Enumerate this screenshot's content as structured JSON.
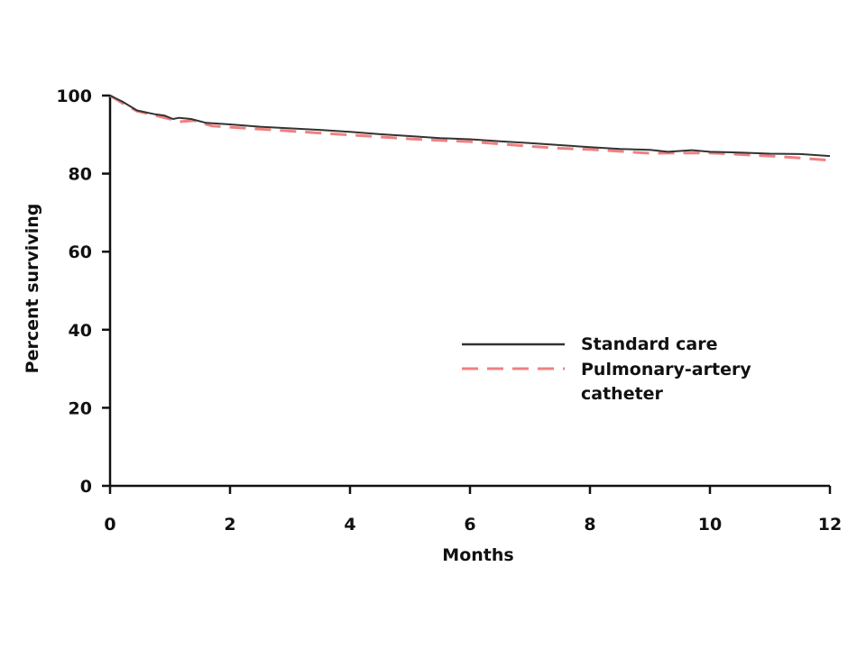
{
  "chart_data": {
    "type": "line",
    "title": "",
    "xlabel": "Months",
    "ylabel": "Percent surviving",
    "xlim": [
      0,
      12
    ],
    "ylim": [
      0,
      100
    ],
    "x_ticks": [
      0,
      2,
      4,
      6,
      8,
      10,
      12
    ],
    "y_ticks": [
      0,
      20,
      40,
      60,
      80,
      100
    ],
    "grid": false,
    "legend_position": "right",
    "series": [
      {
        "name": "Standard care",
        "color": "#333333",
        "style": "solid",
        "x": [
          0,
          0.2,
          0.45,
          0.75,
          0.9,
          1.05,
          1.15,
          1.35,
          1.6,
          2,
          2.5,
          3,
          3.5,
          4,
          4.5,
          5,
          5.5,
          6,
          6.5,
          7,
          7.5,
          8,
          8.5,
          9,
          9.3,
          9.7,
          10,
          10.5,
          11,
          11.5,
          12
        ],
        "y": [
          100,
          98.5,
          96.2,
          95.2,
          94.9,
          94.0,
          94.3,
          94.0,
          93.0,
          92.6,
          92.0,
          91.6,
          91.2,
          90.7,
          90.1,
          89.6,
          89.1,
          88.8,
          88.3,
          87.8,
          87.3,
          86.8,
          86.3,
          86.1,
          85.6,
          86.0,
          85.6,
          85.4,
          85.1,
          85.0,
          84.5
        ]
      },
      {
        "name": "Pulmonary-artery catheter",
        "color": "#f08080",
        "style": "dashed",
        "x": [
          0,
          0.2,
          0.45,
          0.75,
          1.0,
          1.1,
          1.4,
          1.7,
          2,
          2.5,
          3,
          3.5,
          4,
          4.5,
          5,
          5.5,
          6,
          6.5,
          7,
          7.5,
          8,
          8.5,
          9,
          9.5,
          10,
          10.5,
          11,
          11.5,
          12
        ],
        "y": [
          100,
          98.1,
          96.0,
          94.9,
          94.0,
          93.2,
          93.6,
          92.2,
          91.9,
          91.4,
          90.9,
          90.4,
          89.9,
          89.4,
          88.9,
          88.5,
          88.2,
          87.6,
          87.0,
          86.5,
          86.2,
          85.7,
          85.2,
          85.3,
          85.3,
          84.9,
          84.5,
          84.0,
          83.4
        ]
      }
    ]
  }
}
